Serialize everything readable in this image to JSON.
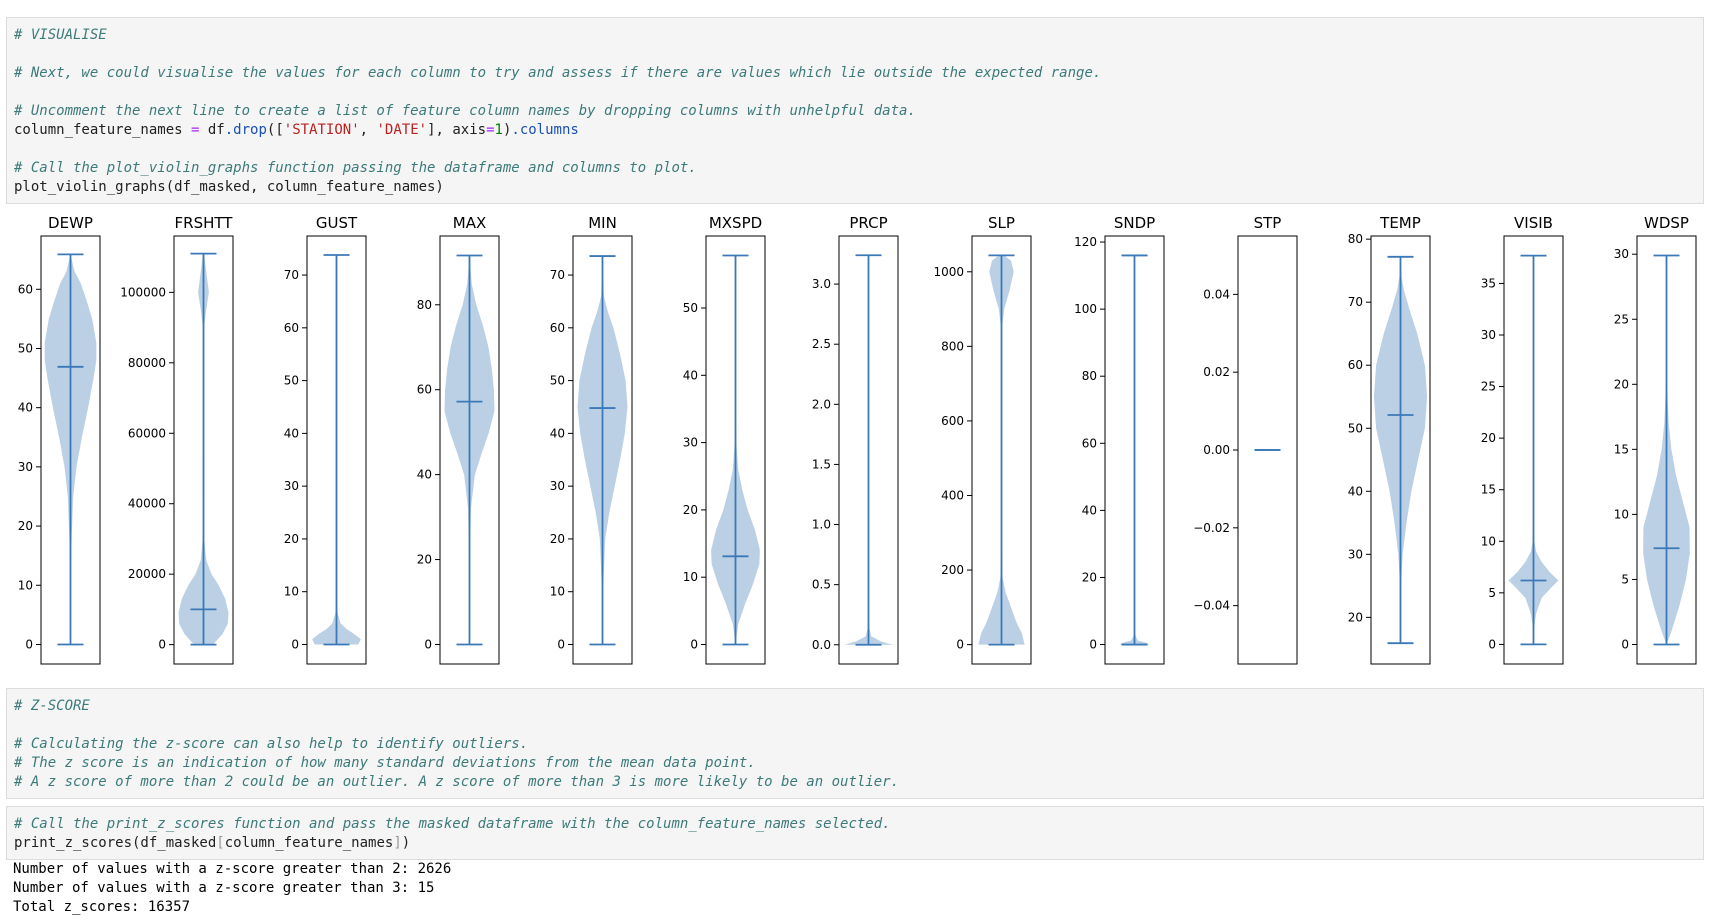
{
  "cells": {
    "visualise": {
      "c1": "# VISUALISE",
      "c2": "# Next, we could visualise the values for each column to try and assess if there are values which lie outside the expected range.",
      "c3": "# Uncomment the next line to create a list of feature column names by dropping columns with unhelpful data.",
      "l4": {
        "a": "column_feature_names ",
        "b": "=",
        "c": " df",
        "d": ".drop",
        "e": "([",
        "f": "'STATION'",
        "g": ", ",
        "h": "'DATE'",
        "i": "], axis",
        "j": "=",
        "k": "1",
        "l": ")",
        "m": ".columns"
      },
      "c5": "# Call the plot_violin_graphs function passing the dataframe and columns to plot.",
      "l6": "plot_violin_graphs(df_masked, column_feature_names)"
    },
    "zscore_md": {
      "c1": "# Z-SCORE",
      "c2": "# Calculating the z-score can also help to identify outliers.",
      "c3": "# The z score is an indication of how many standard deviations from the mean data point.",
      "c4": "# A z score of more than 2 could be an outlier. A z score of more than 3 is more likely to be an outlier."
    },
    "zscore_code": {
      "c1": "# Call the print_z_scores function and pass the masked dataframe with the column_feature_names selected.",
      "l2": {
        "a": "print_z_scores(df_masked",
        "b": "[",
        "c": "column_feature_names",
        "d": "]",
        "e": ")"
      }
    }
  },
  "output": {
    "line1": "Number of values with a z-score greater than 2: 2626",
    "line2": "Number of values with a z-score greater than 3: 15",
    "line3": "Total z_scores: 16357"
  },
  "chart_data": {
    "type": "violin",
    "colors": {
      "body": "#b0c8e0",
      "line": "#3b78b8"
    },
    "panels": [
      {
        "name": "DEWP",
        "ylim": [
          -3.3,
          69
        ],
        "ticks": [
          0,
          10,
          20,
          30,
          40,
          50,
          60
        ],
        "tick_labels": [
          "0",
          "10",
          "20",
          "30",
          "40",
          "50",
          "60"
        ],
        "min": 0,
        "max": 65.9,
        "mean": 46.9,
        "density": [
          [
            0,
            0
          ],
          [
            15,
            0.02
          ],
          [
            25,
            0.1
          ],
          [
            30,
            0.22
          ],
          [
            35,
            0.42
          ],
          [
            40,
            0.65
          ],
          [
            45,
            0.85
          ],
          [
            48,
            0.95
          ],
          [
            51,
            0.95
          ],
          [
            55,
            0.8
          ],
          [
            58,
            0.6
          ],
          [
            61,
            0.38
          ],
          [
            63,
            0.15
          ],
          [
            65.9,
            0
          ]
        ]
      },
      {
        "name": "FRSHTT",
        "ylim": [
          -5500,
          116000
        ],
        "ticks": [
          0,
          20000,
          40000,
          60000,
          80000,
          100000
        ],
        "tick_labels": [
          "0",
          "20000",
          "40000",
          "60000",
          "80000",
          "100000"
        ],
        "min": 0,
        "max": 111000,
        "mean": 10000,
        "density": [
          [
            0,
            0.35
          ],
          [
            3000,
            0.7
          ],
          [
            6000,
            0.9
          ],
          [
            9000,
            0.92
          ],
          [
            13000,
            0.8
          ],
          [
            17000,
            0.55
          ],
          [
            20000,
            0.3
          ],
          [
            24000,
            0.1
          ],
          [
            30000,
            0.03
          ],
          [
            90000,
            0.02
          ],
          [
            95000,
            0.1
          ],
          [
            100000,
            0.2
          ],
          [
            106000,
            0.1
          ],
          [
            111000,
            0.02
          ]
        ]
      },
      {
        "name": "GUST",
        "ylim": [
          -3.7,
          77.4
        ],
        "ticks": [
          0,
          10,
          20,
          30,
          40,
          50,
          60,
          70
        ],
        "tick_labels": [
          "0",
          "10",
          "20",
          "30",
          "40",
          "50",
          "60",
          "70"
        ],
        "min": 0,
        "max": 73.8,
        "mean": null,
        "density": [
          [
            0,
            0.8
          ],
          [
            1,
            0.9
          ],
          [
            2,
            0.65
          ],
          [
            3,
            0.35
          ],
          [
            4,
            0.15
          ],
          [
            6,
            0.04
          ],
          [
            10,
            0.01
          ],
          [
            73.8,
            0.005
          ]
        ]
      },
      {
        "name": "MAX",
        "ylim": [
          -4.6,
          96.2
        ],
        "ticks": [
          0,
          20,
          40,
          60,
          80
        ],
        "tick_labels": [
          "0",
          "20",
          "40",
          "60",
          "80"
        ],
        "min": 0,
        "max": 91.6,
        "mean": 57.2,
        "density": [
          [
            0,
            0
          ],
          [
            20,
            0.01
          ],
          [
            32,
            0.05
          ],
          [
            40,
            0.2
          ],
          [
            45,
            0.45
          ],
          [
            50,
            0.72
          ],
          [
            55,
            0.92
          ],
          [
            60,
            0.9
          ],
          [
            65,
            0.82
          ],
          [
            70,
            0.7
          ],
          [
            75,
            0.5
          ],
          [
            80,
            0.25
          ],
          [
            85,
            0.08
          ],
          [
            91.6,
            0
          ]
        ]
      },
      {
        "name": "MIN",
        "ylim": [
          -3.7,
          77.4
        ],
        "ticks": [
          0,
          10,
          20,
          30,
          40,
          50,
          60,
          70
        ],
        "tick_labels": [
          "0",
          "10",
          "20",
          "30",
          "40",
          "50",
          "60",
          "70"
        ],
        "min": 0,
        "max": 73.6,
        "mean": 44.8,
        "density": [
          [
            0,
            0
          ],
          [
            10,
            0.02
          ],
          [
            20,
            0.1
          ],
          [
            25,
            0.25
          ],
          [
            30,
            0.45
          ],
          [
            35,
            0.65
          ],
          [
            40,
            0.82
          ],
          [
            45,
            0.92
          ],
          [
            50,
            0.85
          ],
          [
            55,
            0.65
          ],
          [
            60,
            0.4
          ],
          [
            63,
            0.2
          ],
          [
            66,
            0.05
          ],
          [
            73.6,
            0
          ]
        ]
      },
      {
        "name": "MXSPD",
        "ylim": [
          -2.9,
          60.7
        ],
        "ticks": [
          0,
          10,
          20,
          30,
          40,
          50
        ],
        "tick_labels": [
          "0",
          "10",
          "20",
          "30",
          "40",
          "50"
        ],
        "min": 0,
        "max": 57.8,
        "mean": 13.1,
        "density": [
          [
            0,
            0
          ],
          [
            3,
            0.1
          ],
          [
            6,
            0.35
          ],
          [
            9,
            0.65
          ],
          [
            12,
            0.88
          ],
          [
            14,
            0.9
          ],
          [
            17,
            0.72
          ],
          [
            20,
            0.45
          ],
          [
            23,
            0.25
          ],
          [
            26,
            0.1
          ],
          [
            30,
            0.03
          ],
          [
            40,
            0.005
          ],
          [
            57.8,
            0
          ]
        ]
      },
      {
        "name": "PRCP",
        "ylim": [
          -0.16,
          3.4
        ],
        "ticks": [
          0,
          0.5,
          1,
          1.5,
          2,
          2.5,
          3
        ],
        "tick_labels": [
          "0.0",
          "0.5",
          "1.0",
          "1.5",
          "2.0",
          "2.5",
          "3.0"
        ],
        "min": 0,
        "max": 3.24,
        "mean": null,
        "density": [
          [
            0,
            0.9
          ],
          [
            0.03,
            0.45
          ],
          [
            0.07,
            0.1
          ],
          [
            0.15,
            0.02
          ],
          [
            3.24,
            0.005
          ]
        ]
      },
      {
        "name": "SLP",
        "ylim": [
          -52,
          1096
        ],
        "ticks": [
          0,
          200,
          400,
          600,
          800,
          1000
        ],
        "tick_labels": [
          "0",
          "200",
          "400",
          "600",
          "800",
          "1000"
        ],
        "min": 0,
        "max": 1044,
        "mean": null,
        "density": [
          [
            0,
            0.85
          ],
          [
            30,
            0.75
          ],
          [
            60,
            0.55
          ],
          [
            100,
            0.35
          ],
          [
            140,
            0.15
          ],
          [
            180,
            0.04
          ],
          [
            300,
            0.005
          ],
          [
            850,
            0.02
          ],
          [
            900,
            0.1
          ],
          [
            950,
            0.3
          ],
          [
            1000,
            0.45
          ],
          [
            1030,
            0.35
          ],
          [
            1044,
            0.1
          ]
        ]
      },
      {
        "name": "SNDP",
        "ylim": [
          -5.8,
          121.8
        ],
        "ticks": [
          0,
          20,
          40,
          60,
          80,
          100,
          120
        ],
        "tick_labels": [
          "0",
          "20",
          "40",
          "60",
          "80",
          "100",
          "120"
        ],
        "min": 0,
        "max": 116,
        "mean": null,
        "density": [
          [
            0,
            0.55
          ],
          [
            0.5,
            0.45
          ],
          [
            1.2,
            0.12
          ],
          [
            3,
            0.02
          ],
          [
            116,
            0.005
          ]
        ]
      },
      {
        "name": "STP",
        "ylim": [
          -0.055,
          0.055
        ],
        "ticks": [
          -0.04,
          -0.02,
          0,
          0.02,
          0.04
        ],
        "tick_labels": [
          "−0.04",
          "−0.02",
          "0.00",
          "0.02",
          "0.04"
        ],
        "min": 0,
        "max": 0,
        "mean": null,
        "density": []
      },
      {
        "name": "TEMP",
        "ylim": [
          12.6,
          80.5
        ],
        "ticks": [
          20,
          30,
          40,
          50,
          60,
          70,
          80
        ],
        "tick_labels": [
          "20",
          "30",
          "40",
          "50",
          "60",
          "70",
          "80"
        ],
        "min": 15.9,
        "max": 77.2,
        "mean": 52.1,
        "density": [
          [
            15.9,
            0
          ],
          [
            25,
            0.02
          ],
          [
            30,
            0.08
          ],
          [
            35,
            0.22
          ],
          [
            40,
            0.4
          ],
          [
            45,
            0.65
          ],
          [
            50,
            0.9
          ],
          [
            55,
            0.98
          ],
          [
            60,
            0.9
          ],
          [
            65,
            0.62
          ],
          [
            69,
            0.32
          ],
          [
            72,
            0.12
          ],
          [
            74,
            0.04
          ],
          [
            77.2,
            0
          ]
        ]
      },
      {
        "name": "VISIB",
        "ylim": [
          -1.9,
          39.6
        ],
        "ticks": [
          0,
          5,
          10,
          15,
          20,
          25,
          30,
          35
        ],
        "tick_labels": [
          "0",
          "5",
          "10",
          "15",
          "20",
          "25",
          "30",
          "35"
        ],
        "min": 0,
        "max": 37.7,
        "mean": 6.2,
        "density": [
          [
            0,
            0
          ],
          [
            2,
            0.04
          ],
          [
            3,
            0.1
          ],
          [
            4.5,
            0.3
          ],
          [
            5.5,
            0.65
          ],
          [
            6.2,
            0.92
          ],
          [
            7,
            0.6
          ],
          [
            8,
            0.3
          ],
          [
            9,
            0.1
          ],
          [
            10,
            0.03
          ],
          [
            14,
            0.005
          ],
          [
            37.7,
            0
          ]
        ]
      },
      {
        "name": "WDSP",
        "ylim": [
          -1.5,
          31.4
        ],
        "ticks": [
          0,
          5,
          10,
          15,
          20,
          25,
          30
        ],
        "tick_labels": [
          "0",
          "5",
          "10",
          "15",
          "20",
          "25",
          "30"
        ],
        "min": 0,
        "max": 29.9,
        "mean": 7.4,
        "density": [
          [
            0,
            0
          ],
          [
            1,
            0.18
          ],
          [
            3,
            0.48
          ],
          [
            5,
            0.72
          ],
          [
            7,
            0.86
          ],
          [
            9,
            0.85
          ],
          [
            11,
            0.6
          ],
          [
            13,
            0.35
          ],
          [
            15,
            0.18
          ],
          [
            17,
            0.08
          ],
          [
            20,
            0.02
          ],
          [
            29.9,
            0
          ]
        ]
      }
    ]
  }
}
